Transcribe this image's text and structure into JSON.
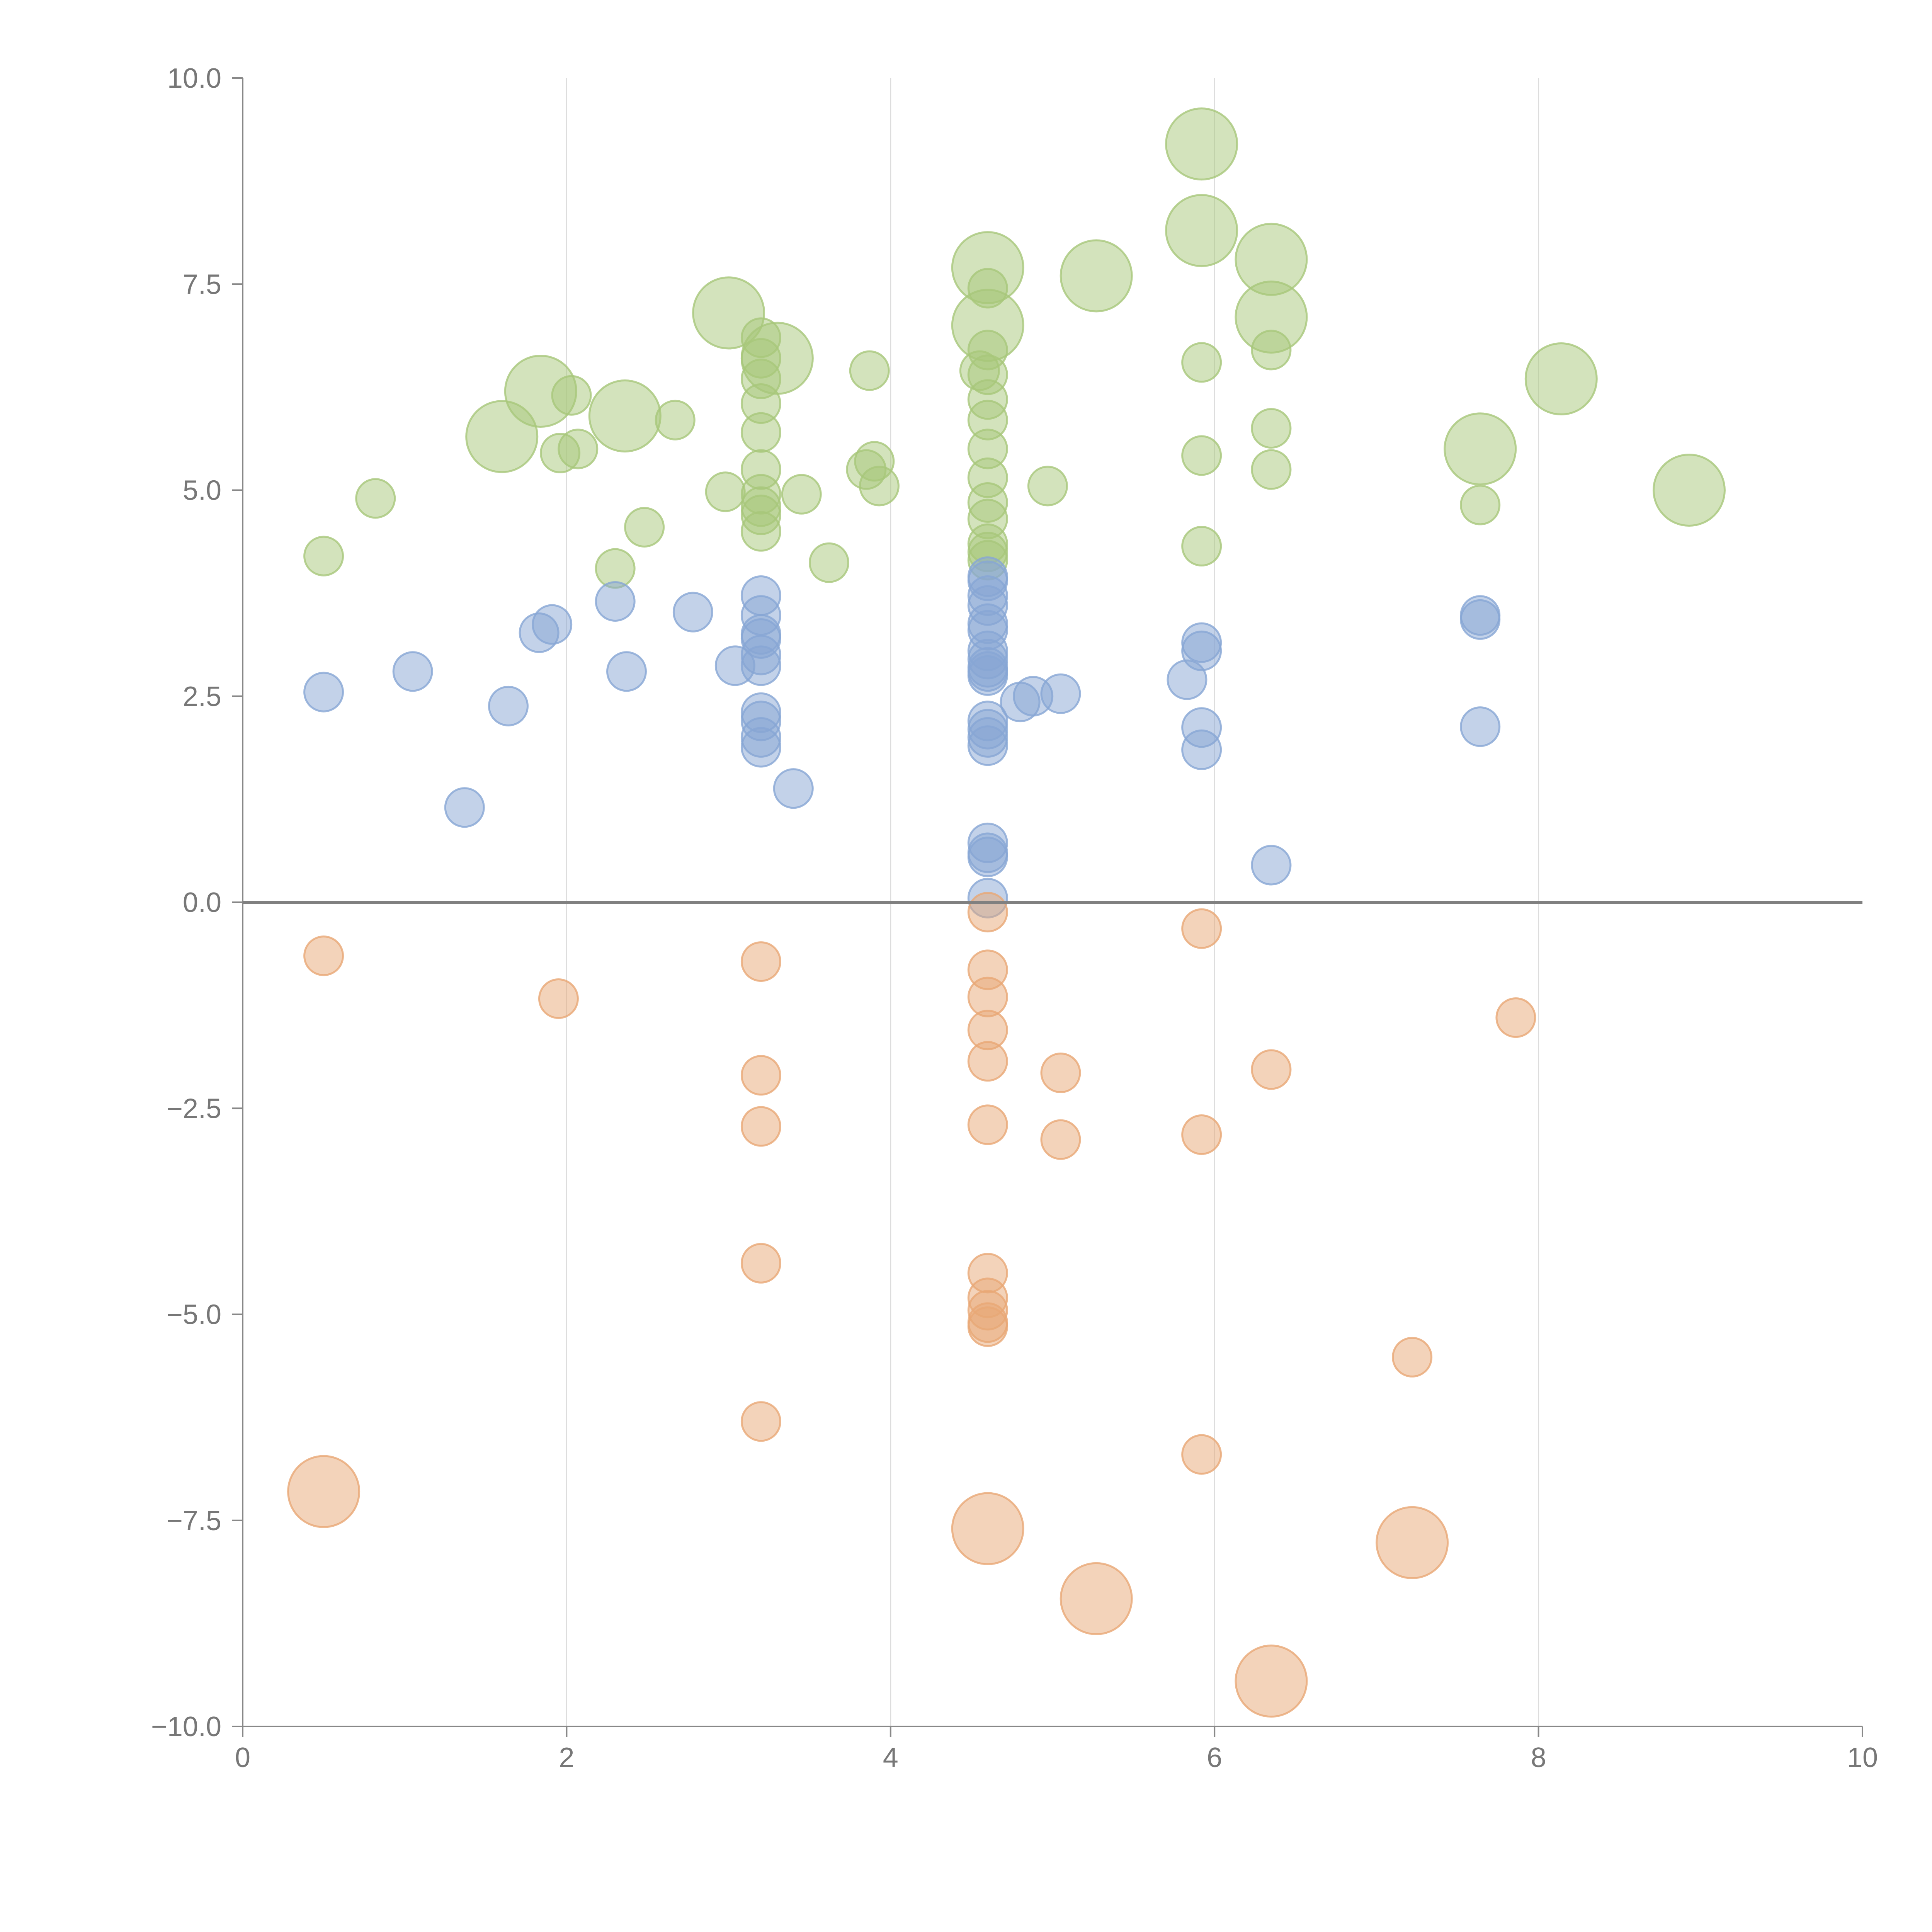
{
  "chart_data": {
    "type": "scatter",
    "title": "",
    "xlabel": "",
    "ylabel": "",
    "xlim": [
      0,
      10
    ],
    "ylim": [
      -10,
      10
    ],
    "x_ticks": [
      "0",
      "2",
      "4",
      "6",
      "8",
      "10"
    ],
    "y_ticks": [
      "10.0",
      "7.5",
      "5.0",
      "2.5",
      "0.0",
      "−2.5",
      "−5.0",
      "−7.5",
      "−10.0"
    ],
    "grid": "vertical",
    "series": [
      {
        "name": "green",
        "color": "#a7c77a",
        "points": [
          {
            "x": 0.5,
            "y": 4.2,
            "s": 1
          },
          {
            "x": 0.82,
            "y": 4.9,
            "s": 1
          },
          {
            "x": 1.6,
            "y": 5.65,
            "s": 3
          },
          {
            "x": 1.84,
            "y": 6.2,
            "s": 3
          },
          {
            "x": 1.96,
            "y": 5.45,
            "s": 1
          },
          {
            "x": 2.03,
            "y": 6.15,
            "s": 1
          },
          {
            "x": 2.07,
            "y": 5.5,
            "s": 1
          },
          {
            "x": 2.3,
            "y": 4.05,
            "s": 1
          },
          {
            "x": 2.36,
            "y": 5.9,
            "s": 3
          },
          {
            "x": 2.48,
            "y": 4.55,
            "s": 1
          },
          {
            "x": 2.67,
            "y": 5.85,
            "s": 1
          },
          {
            "x": 2.98,
            "y": 4.98,
            "s": 1
          },
          {
            "x": 3.0,
            "y": 7.15,
            "s": 3
          },
          {
            "x": 3.2,
            "y": 6.85,
            "s": 1
          },
          {
            "x": 3.2,
            "y": 6.6,
            "s": 1
          },
          {
            "x": 3.2,
            "y": 6.35,
            "s": 1
          },
          {
            "x": 3.2,
            "y": 6.05,
            "s": 1
          },
          {
            "x": 3.2,
            "y": 5.7,
            "s": 1
          },
          {
            "x": 3.2,
            "y": 5.25,
            "s": 1
          },
          {
            "x": 3.2,
            "y": 4.95,
            "s": 1
          },
          {
            "x": 3.2,
            "y": 4.8,
            "s": 1
          },
          {
            "x": 3.2,
            "y": 4.7,
            "s": 1
          },
          {
            "x": 3.2,
            "y": 4.5,
            "s": 1
          },
          {
            "x": 3.3,
            "y": 6.6,
            "s": 3
          },
          {
            "x": 3.45,
            "y": 4.95,
            "s": 1
          },
          {
            "x": 3.62,
            "y": 4.12,
            "s": 1
          },
          {
            "x": 3.87,
            "y": 6.45,
            "s": 1
          },
          {
            "x": 3.85,
            "y": 5.25,
            "s": 1
          },
          {
            "x": 3.9,
            "y": 5.35,
            "s": 1
          },
          {
            "x": 3.93,
            "y": 5.05,
            "s": 1
          },
          {
            "x": 4.55,
            "y": 6.45,
            "s": 1
          },
          {
            "x": 4.6,
            "y": 7.7,
            "s": 3
          },
          {
            "x": 4.6,
            "y": 7.45,
            "s": 1
          },
          {
            "x": 4.6,
            "y": 7.0,
            "s": 3
          },
          {
            "x": 4.6,
            "y": 6.7,
            "s": 1
          },
          {
            "x": 4.6,
            "y": 6.4,
            "s": 1
          },
          {
            "x": 4.6,
            "y": 6.1,
            "s": 1
          },
          {
            "x": 4.6,
            "y": 5.85,
            "s": 1
          },
          {
            "x": 4.6,
            "y": 5.5,
            "s": 1
          },
          {
            "x": 4.6,
            "y": 5.15,
            "s": 1
          },
          {
            "x": 4.6,
            "y": 4.85,
            "s": 1
          },
          {
            "x": 4.6,
            "y": 4.65,
            "s": 1
          },
          {
            "x": 4.6,
            "y": 4.35,
            "s": 1
          },
          {
            "x": 4.6,
            "y": 4.25,
            "s": 1
          },
          {
            "x": 4.6,
            "y": 4.15,
            "s": 1
          },
          {
            "x": 4.97,
            "y": 5.05,
            "s": 1
          },
          {
            "x": 5.27,
            "y": 7.6,
            "s": 3
          },
          {
            "x": 5.92,
            "y": 9.2,
            "s": 3
          },
          {
            "x": 5.92,
            "y": 8.15,
            "s": 3
          },
          {
            "x": 5.92,
            "y": 6.55,
            "s": 1
          },
          {
            "x": 5.92,
            "y": 5.42,
            "s": 1
          },
          {
            "x": 5.92,
            "y": 4.32,
            "s": 1
          },
          {
            "x": 6.35,
            "y": 7.8,
            "s": 3
          },
          {
            "x": 6.35,
            "y": 7.1,
            "s": 3
          },
          {
            "x": 6.35,
            "y": 6.7,
            "s": 1
          },
          {
            "x": 6.35,
            "y": 5.75,
            "s": 1
          },
          {
            "x": 6.35,
            "y": 5.25,
            "s": 1
          },
          {
            "x": 7.64,
            "y": 5.5,
            "s": 3
          },
          {
            "x": 7.64,
            "y": 4.82,
            "s": 1
          },
          {
            "x": 8.14,
            "y": 6.35,
            "s": 3
          },
          {
            "x": 8.93,
            "y": 5.0,
            "s": 3
          }
        ]
      },
      {
        "name": "blue",
        "color": "#87a6d4",
        "points": [
          {
            "x": 0.5,
            "y": 2.55,
            "s": 1
          },
          {
            "x": 1.05,
            "y": 2.8,
            "s": 1
          },
          {
            "x": 1.37,
            "y": 1.15,
            "s": 1
          },
          {
            "x": 1.64,
            "y": 2.38,
            "s": 1
          },
          {
            "x": 1.83,
            "y": 3.27,
            "s": 1
          },
          {
            "x": 1.91,
            "y": 3.37,
            "s": 1
          },
          {
            "x": 2.3,
            "y": 3.65,
            "s": 1
          },
          {
            "x": 2.37,
            "y": 2.8,
            "s": 1
          },
          {
            "x": 2.78,
            "y": 3.52,
            "s": 1
          },
          {
            "x": 3.04,
            "y": 2.87,
            "s": 1
          },
          {
            "x": 3.2,
            "y": 3.72,
            "s": 1
          },
          {
            "x": 3.2,
            "y": 3.48,
            "s": 1
          },
          {
            "x": 3.2,
            "y": 3.25,
            "s": 1
          },
          {
            "x": 3.2,
            "y": 3.2,
            "s": 1
          },
          {
            "x": 3.2,
            "y": 3.0,
            "s": 1
          },
          {
            "x": 3.2,
            "y": 2.87,
            "s": 1
          },
          {
            "x": 3.2,
            "y": 2.3,
            "s": 1
          },
          {
            "x": 3.2,
            "y": 2.2,
            "s": 1
          },
          {
            "x": 3.2,
            "y": 2.0,
            "s": 1
          },
          {
            "x": 3.2,
            "y": 1.88,
            "s": 1
          },
          {
            "x": 3.4,
            "y": 1.38,
            "s": 1
          },
          {
            "x": 4.6,
            "y": 3.95,
            "s": 1
          },
          {
            "x": 4.6,
            "y": 3.9,
            "s": 1
          },
          {
            "x": 4.6,
            "y": 3.72,
            "s": 1
          },
          {
            "x": 4.6,
            "y": 3.6,
            "s": 1
          },
          {
            "x": 4.6,
            "y": 3.38,
            "s": 1
          },
          {
            "x": 4.6,
            "y": 3.3,
            "s": 1
          },
          {
            "x": 4.6,
            "y": 3.05,
            "s": 1
          },
          {
            "x": 4.6,
            "y": 2.95,
            "s": 1
          },
          {
            "x": 4.6,
            "y": 2.85,
            "s": 1
          },
          {
            "x": 4.6,
            "y": 2.8,
            "s": 1
          },
          {
            "x": 4.6,
            "y": 2.75,
            "s": 1
          },
          {
            "x": 4.6,
            "y": 2.2,
            "s": 1
          },
          {
            "x": 4.6,
            "y": 2.1,
            "s": 1
          },
          {
            "x": 4.6,
            "y": 2.0,
            "s": 1
          },
          {
            "x": 4.6,
            "y": 1.9,
            "s": 1
          },
          {
            "x": 4.6,
            "y": 0.72,
            "s": 1
          },
          {
            "x": 4.6,
            "y": 0.6,
            "s": 1
          },
          {
            "x": 4.6,
            "y": 0.55,
            "s": 1
          },
          {
            "x": 4.6,
            "y": 0.05,
            "s": 1
          },
          {
            "x": 4.8,
            "y": 2.43,
            "s": 1
          },
          {
            "x": 4.88,
            "y": 2.5,
            "s": 1
          },
          {
            "x": 5.05,
            "y": 2.53,
            "s": 1
          },
          {
            "x": 5.83,
            "y": 2.7,
            "s": 1
          },
          {
            "x": 5.92,
            "y": 3.15,
            "s": 1
          },
          {
            "x": 5.92,
            "y": 3.05,
            "s": 1
          },
          {
            "x": 5.92,
            "y": 2.12,
            "s": 1
          },
          {
            "x": 5.92,
            "y": 1.85,
            "s": 1
          },
          {
            "x": 6.35,
            "y": 0.45,
            "s": 1
          },
          {
            "x": 7.64,
            "y": 3.48,
            "s": 1
          },
          {
            "x": 7.64,
            "y": 3.43,
            "s": 1
          },
          {
            "x": 7.64,
            "y": 2.13,
            "s": 1
          }
        ]
      },
      {
        "name": "orange",
        "color": "#e8a876",
        "points": [
          {
            "x": 0.5,
            "y": -0.65,
            "s": 1
          },
          {
            "x": 0.5,
            "y": -7.15,
            "s": 3
          },
          {
            "x": 1.95,
            "y": -1.17,
            "s": 1
          },
          {
            "x": 3.2,
            "y": -0.72,
            "s": 1
          },
          {
            "x": 3.2,
            "y": -2.1,
            "s": 1
          },
          {
            "x": 3.2,
            "y": -2.72,
            "s": 1
          },
          {
            "x": 3.2,
            "y": -4.38,
            "s": 1
          },
          {
            "x": 3.2,
            "y": -6.3,
            "s": 1
          },
          {
            "x": 4.6,
            "y": -0.12,
            "s": 1
          },
          {
            "x": 4.6,
            "y": -0.82,
            "s": 1
          },
          {
            "x": 4.6,
            "y": -1.15,
            "s": 1
          },
          {
            "x": 4.6,
            "y": -1.55,
            "s": 1
          },
          {
            "x": 4.6,
            "y": -1.93,
            "s": 1
          },
          {
            "x": 4.6,
            "y": -2.7,
            "s": 1
          },
          {
            "x": 4.6,
            "y": -4.5,
            "s": 1
          },
          {
            "x": 4.6,
            "y": -4.8,
            "s": 1
          },
          {
            "x": 4.6,
            "y": -4.95,
            "s": 1
          },
          {
            "x": 4.6,
            "y": -5.1,
            "s": 1
          },
          {
            "x": 4.6,
            "y": -5.15,
            "s": 1
          },
          {
            "x": 4.6,
            "y": -7.6,
            "s": 3
          },
          {
            "x": 5.05,
            "y": -2.07,
            "s": 1
          },
          {
            "x": 5.05,
            "y": -2.88,
            "s": 1
          },
          {
            "x": 5.27,
            "y": -8.45,
            "s": 3
          },
          {
            "x": 5.92,
            "y": -0.32,
            "s": 1
          },
          {
            "x": 5.92,
            "y": -2.82,
            "s": 1
          },
          {
            "x": 5.92,
            "y": -6.7,
            "s": 1
          },
          {
            "x": 6.35,
            "y": -2.03,
            "s": 1
          },
          {
            "x": 6.35,
            "y": -9.45,
            "s": 3
          },
          {
            "x": 7.22,
            "y": -5.52,
            "s": 1
          },
          {
            "x": 7.22,
            "y": -7.77,
            "s": 3
          },
          {
            "x": 7.86,
            "y": -1.4,
            "s": 1
          }
        ]
      }
    ]
  }
}
